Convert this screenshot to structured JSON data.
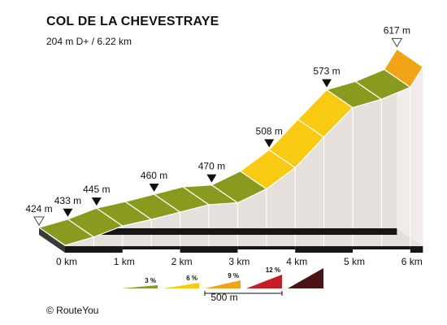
{
  "chart_data": {
    "type": "area",
    "title": "COL DE LA CHEVESTRAYE",
    "subtitle": "204 m D+ / 6.22 km",
    "xlabel": "",
    "ylabel": "",
    "x_unit": "km",
    "xlim": [
      0,
      6.22
    ],
    "ylim": [
      400,
      630
    ],
    "distance_labels": [
      "0 km",
      "1 km",
      "2 km",
      "3 km",
      "4 km",
      "5 km",
      "6 km"
    ],
    "points": [
      {
        "km": 0.0,
        "elev": 424,
        "label": "424 m",
        "marker": "start"
      },
      {
        "km": 0.5,
        "elev": 433,
        "label": "433 m",
        "marker": "arrow"
      },
      {
        "km": 1.0,
        "elev": 445,
        "label": "445 m",
        "marker": "arrow"
      },
      {
        "km": 1.5,
        "elev": 452,
        "label": "",
        "marker": ""
      },
      {
        "km": 2.0,
        "elev": 460,
        "label": "460 m",
        "marker": "arrow"
      },
      {
        "km": 2.5,
        "elev": 468,
        "label": "",
        "marker": ""
      },
      {
        "km": 3.0,
        "elev": 470,
        "label": "470 m",
        "marker": "arrow"
      },
      {
        "km": 3.5,
        "elev": 485,
        "label": "",
        "marker": ""
      },
      {
        "km": 4.0,
        "elev": 508,
        "label": "508 m",
        "marker": "arrow"
      },
      {
        "km": 4.5,
        "elev": 541,
        "label": "",
        "marker": ""
      },
      {
        "km": 5.0,
        "elev": 573,
        "label": "573 m",
        "marker": "arrow"
      },
      {
        "km": 5.5,
        "elev": 582,
        "label": "",
        "marker": ""
      },
      {
        "km": 6.0,
        "elev": 595,
        "label": "",
        "marker": ""
      },
      {
        "km": 6.22,
        "elev": 617,
        "label": "617 m",
        "marker": "summit"
      }
    ],
    "legend": {
      "items": [
        {
          "label": "3 %",
          "color": "#8a9a1e"
        },
        {
          "label": "6 %",
          "color": "#f8ca12"
        },
        {
          "label": "9 %",
          "color": "#f0a416"
        },
        {
          "label": "12 %",
          "color": "#c21f27"
        },
        {
          "label": "",
          "color": "#4a1316"
        }
      ],
      "scale_label": "500 m"
    },
    "colors": {
      "3": "#8a9a1e",
      "6": "#f8ca12",
      "9": "#f0a416",
      "12": "#c21f27",
      "15": "#4a1316",
      "side": "#e6e0dc",
      "base": "#161616"
    }
  },
  "credit": "© RouteYou"
}
